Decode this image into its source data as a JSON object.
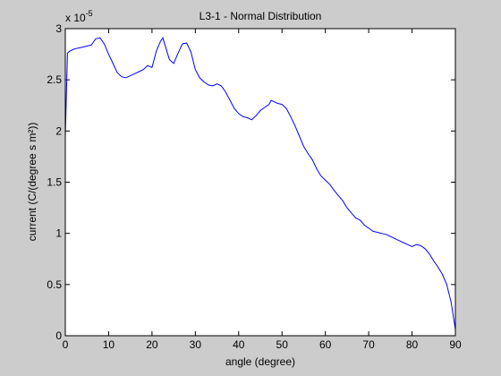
{
  "chart_data": {
    "type": "line",
    "title": "L3-1 - Normal Distribution",
    "xlabel": "angle (degree)",
    "ylabel": "current (C/(degree s m²))",
    "y_exponent": "x 10",
    "y_exponent_power": "-5",
    "xlim": [
      0,
      90
    ],
    "ylim": [
      0,
      3
    ],
    "x_ticks": [
      0,
      10,
      20,
      30,
      40,
      50,
      60,
      70,
      80,
      90
    ],
    "x_tick_labels": [
      "0",
      "10",
      "20",
      "30",
      "40",
      "50",
      "60",
      "70",
      "80",
      "90"
    ],
    "y_ticks": [
      0,
      0.5,
      1,
      1.5,
      2,
      2.5,
      3
    ],
    "y_tick_labels": [
      "0",
      "0.5",
      "1",
      "1.5",
      "2",
      "2.5",
      "3"
    ],
    "grid": false,
    "line_color": "#0000ff",
    "background_color": "#cccccc",
    "axes_color": "#ffffff",
    "series": [
      {
        "x": [
          0,
          0.5,
          1,
          2,
          3,
          4,
          5,
          6,
          7,
          8,
          9,
          10,
          11,
          12,
          13,
          14,
          15,
          16,
          17,
          18,
          19,
          20,
          21,
          22,
          22.5,
          23,
          24,
          25,
          26,
          27,
          28,
          29,
          30,
          31,
          32,
          33,
          34,
          35,
          36,
          37,
          38,
          39,
          40,
          41,
          42,
          43,
          44,
          45,
          46,
          47,
          47.5,
          48,
          49,
          50,
          51,
          52,
          53,
          54,
          55,
          56,
          57,
          58,
          59,
          60,
          61,
          62,
          63,
          64,
          65,
          66,
          67,
          68,
          69,
          70,
          71,
          72,
          73,
          74,
          75,
          76,
          77,
          78,
          79,
          80,
          81,
          82,
          83,
          84,
          85,
          86,
          87,
          88,
          89,
          90
        ],
        "y": [
          1.95,
          2.76,
          2.78,
          2.8,
          2.81,
          2.82,
          2.83,
          2.84,
          2.9,
          2.91,
          2.85,
          2.75,
          2.66,
          2.57,
          2.53,
          2.52,
          2.54,
          2.56,
          2.58,
          2.6,
          2.64,
          2.62,
          2.78,
          2.88,
          2.91,
          2.84,
          2.7,
          2.66,
          2.76,
          2.85,
          2.86,
          2.77,
          2.6,
          2.52,
          2.48,
          2.45,
          2.44,
          2.46,
          2.44,
          2.38,
          2.3,
          2.22,
          2.17,
          2.14,
          2.13,
          2.11,
          2.15,
          2.2,
          2.23,
          2.26,
          2.3,
          2.29,
          2.27,
          2.26,
          2.22,
          2.14,
          2.05,
          1.95,
          1.85,
          1.78,
          1.72,
          1.63,
          1.56,
          1.52,
          1.48,
          1.42,
          1.37,
          1.32,
          1.25,
          1.2,
          1.15,
          1.13,
          1.08,
          1.05,
          1.02,
          1.01,
          1.0,
          0.99,
          0.97,
          0.95,
          0.93,
          0.91,
          0.89,
          0.87,
          0.89,
          0.88,
          0.85,
          0.8,
          0.73,
          0.67,
          0.6,
          0.5,
          0.33,
          0.06
        ]
      }
    ]
  }
}
